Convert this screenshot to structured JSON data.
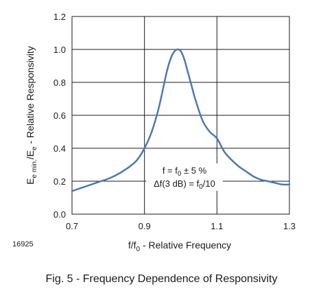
{
  "chart_data": {
    "type": "line",
    "x_label": {
      "main": "f/f",
      "sub": "0",
      "rest": " - Relative Frequency"
    },
    "y_label": {
      "e1": "E",
      "e1_sub": "e min.",
      "mid": "/E",
      "e2_sub": "e",
      "rest": " - Relative Responsivity"
    },
    "x_ticks": [
      "0.7",
      "0.9",
      "1.1",
      "1.3"
    ],
    "y_ticks": [
      "0.0",
      "0.2",
      "0.4",
      "0.6",
      "0.8",
      "1.0",
      "1.2"
    ],
    "xlim": [
      0.7,
      1.3
    ],
    "ylim": [
      0.0,
      1.2
    ],
    "grid": true,
    "line_color": "#4a78b2",
    "annotation": {
      "line1": {
        "a": "f = f",
        "sub": "0",
        "b": " ± 5 %"
      },
      "line2": {
        "a": "Δf(3 dB) = f",
        "sub": "0",
        "b": "/10"
      }
    },
    "series": [
      {
        "x": [
          0.7,
          0.72,
          0.74,
          0.76,
          0.78,
          0.8,
          0.82,
          0.84,
          0.86,
          0.88,
          0.9,
          0.92,
          0.94,
          0.96,
          0.97,
          0.98,
          0.99,
          1.0,
          1.01,
          1.02,
          1.03,
          1.04,
          1.06,
          1.08,
          1.1,
          1.12,
          1.14,
          1.16,
          1.18,
          1.2,
          1.22,
          1.24,
          1.26,
          1.28,
          1.3
        ],
        "y": [
          0.14,
          0.155,
          0.17,
          0.185,
          0.2,
          0.215,
          0.235,
          0.26,
          0.29,
          0.33,
          0.4,
          0.5,
          0.65,
          0.85,
          0.93,
          0.98,
          1.0,
          0.99,
          0.94,
          0.86,
          0.78,
          0.7,
          0.57,
          0.5,
          0.46,
          0.38,
          0.33,
          0.29,
          0.26,
          0.23,
          0.21,
          0.2,
          0.19,
          0.18,
          0.18
        ]
      }
    ]
  },
  "figure_number": "16925",
  "caption": "Fig. 5 - Frequency Dependence of Responsivity"
}
